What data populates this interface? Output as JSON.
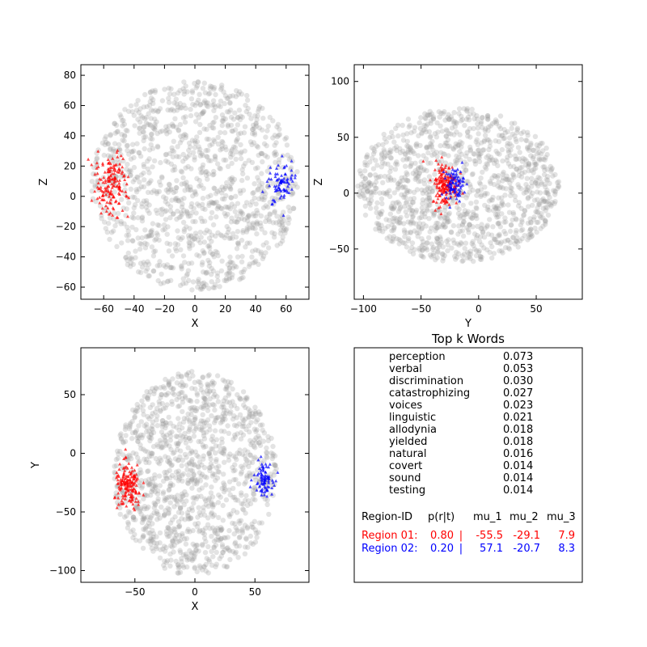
{
  "colors": {
    "gray_points": "#9a9a9a",
    "region_01": "#ff0000",
    "region_02": "#0000ff"
  },
  "chart_data": [
    {
      "type": "scatter",
      "view": "coronal",
      "xlabel": "X",
      "ylabel": "Z",
      "xlim": [
        -75,
        75
      ],
      "ylim": [
        -68,
        87
      ],
      "xticks": [
        -60,
        -40,
        -20,
        0,
        20,
        40,
        60
      ],
      "yticks": [
        -60,
        -40,
        -20,
        0,
        20,
        40,
        60,
        80
      ],
      "brain_extent": {
        "x": [
          -68,
          68
        ],
        "y": [
          -62,
          76
        ]
      },
      "region_clusters": [
        {
          "region": "Region 01",
          "x": -55.5,
          "y": 7.9
        },
        {
          "region": "Region 02",
          "x": 57.1,
          "y": 8.3
        }
      ]
    },
    {
      "type": "scatter",
      "view": "sagittal",
      "xlabel": "Y",
      "ylabel": "Z",
      "xlim": [
        -108,
        90
      ],
      "ylim": [
        -95,
        115
      ],
      "xticks": [
        -100,
        -50,
        0,
        50
      ],
      "yticks": [
        -50,
        0,
        50,
        100
      ],
      "brain_extent": {
        "x": [
          -105,
          70
        ],
        "y": [
          -62,
          76
        ]
      },
      "region_clusters": [
        {
          "region": "Region 01",
          "x": -29.1,
          "y": 7.9
        },
        {
          "region": "Region 02",
          "x": -20.7,
          "y": 8.3
        }
      ]
    },
    {
      "type": "scatter",
      "view": "axial",
      "xlabel": "X",
      "ylabel": "Y",
      "xlim": [
        -95,
        95
      ],
      "ylim": [
        -110,
        90
      ],
      "xticks": [
        -50,
        0,
        50
      ],
      "yticks": [
        -100,
        -50,
        0,
        50
      ],
      "brain_extent": {
        "x": [
          -68,
          68
        ],
        "y": [
          -105,
          70
        ]
      },
      "region_clusters": [
        {
          "region": "Region 01",
          "x": -55.5,
          "y": -29.1
        },
        {
          "region": "Region 02",
          "x": 57.1,
          "y": -20.7
        }
      ]
    }
  ],
  "panel": {
    "title": "Top k Words",
    "words": [
      {
        "word": "perception",
        "weight": "0.073"
      },
      {
        "word": "verbal",
        "weight": "0.053"
      },
      {
        "word": "discrimination",
        "weight": "0.030"
      },
      {
        "word": "catastrophizing",
        "weight": "0.027"
      },
      {
        "word": "voices",
        "weight": "0.023"
      },
      {
        "word": "linguistic",
        "weight": "0.021"
      },
      {
        "word": "allodynia",
        "weight": "0.018"
      },
      {
        "word": "yielded",
        "weight": "0.018"
      },
      {
        "word": "natural",
        "weight": "0.016"
      },
      {
        "word": "covert",
        "weight": "0.014"
      },
      {
        "word": "sound",
        "weight": "0.014"
      },
      {
        "word": "testing",
        "weight": "0.014"
      }
    ],
    "header": {
      "id": "Region-ID",
      "p": "p(r|t)",
      "mu1": "mu_1",
      "mu2": "mu_2",
      "mu3": "mu_3"
    },
    "regions": [
      {
        "id": "Region 01:",
        "p": "0.80",
        "sep": "|",
        "mu1": "-55.5",
        "mu2": "-29.1",
        "mu3": "7.9",
        "color": "#ff0000"
      },
      {
        "id": "Region 02:",
        "p": "0.20",
        "sep": "|",
        "mu1": "57.1",
        "mu2": "-20.7",
        "mu3": "8.3",
        "color": "#0000ff"
      }
    ]
  }
}
